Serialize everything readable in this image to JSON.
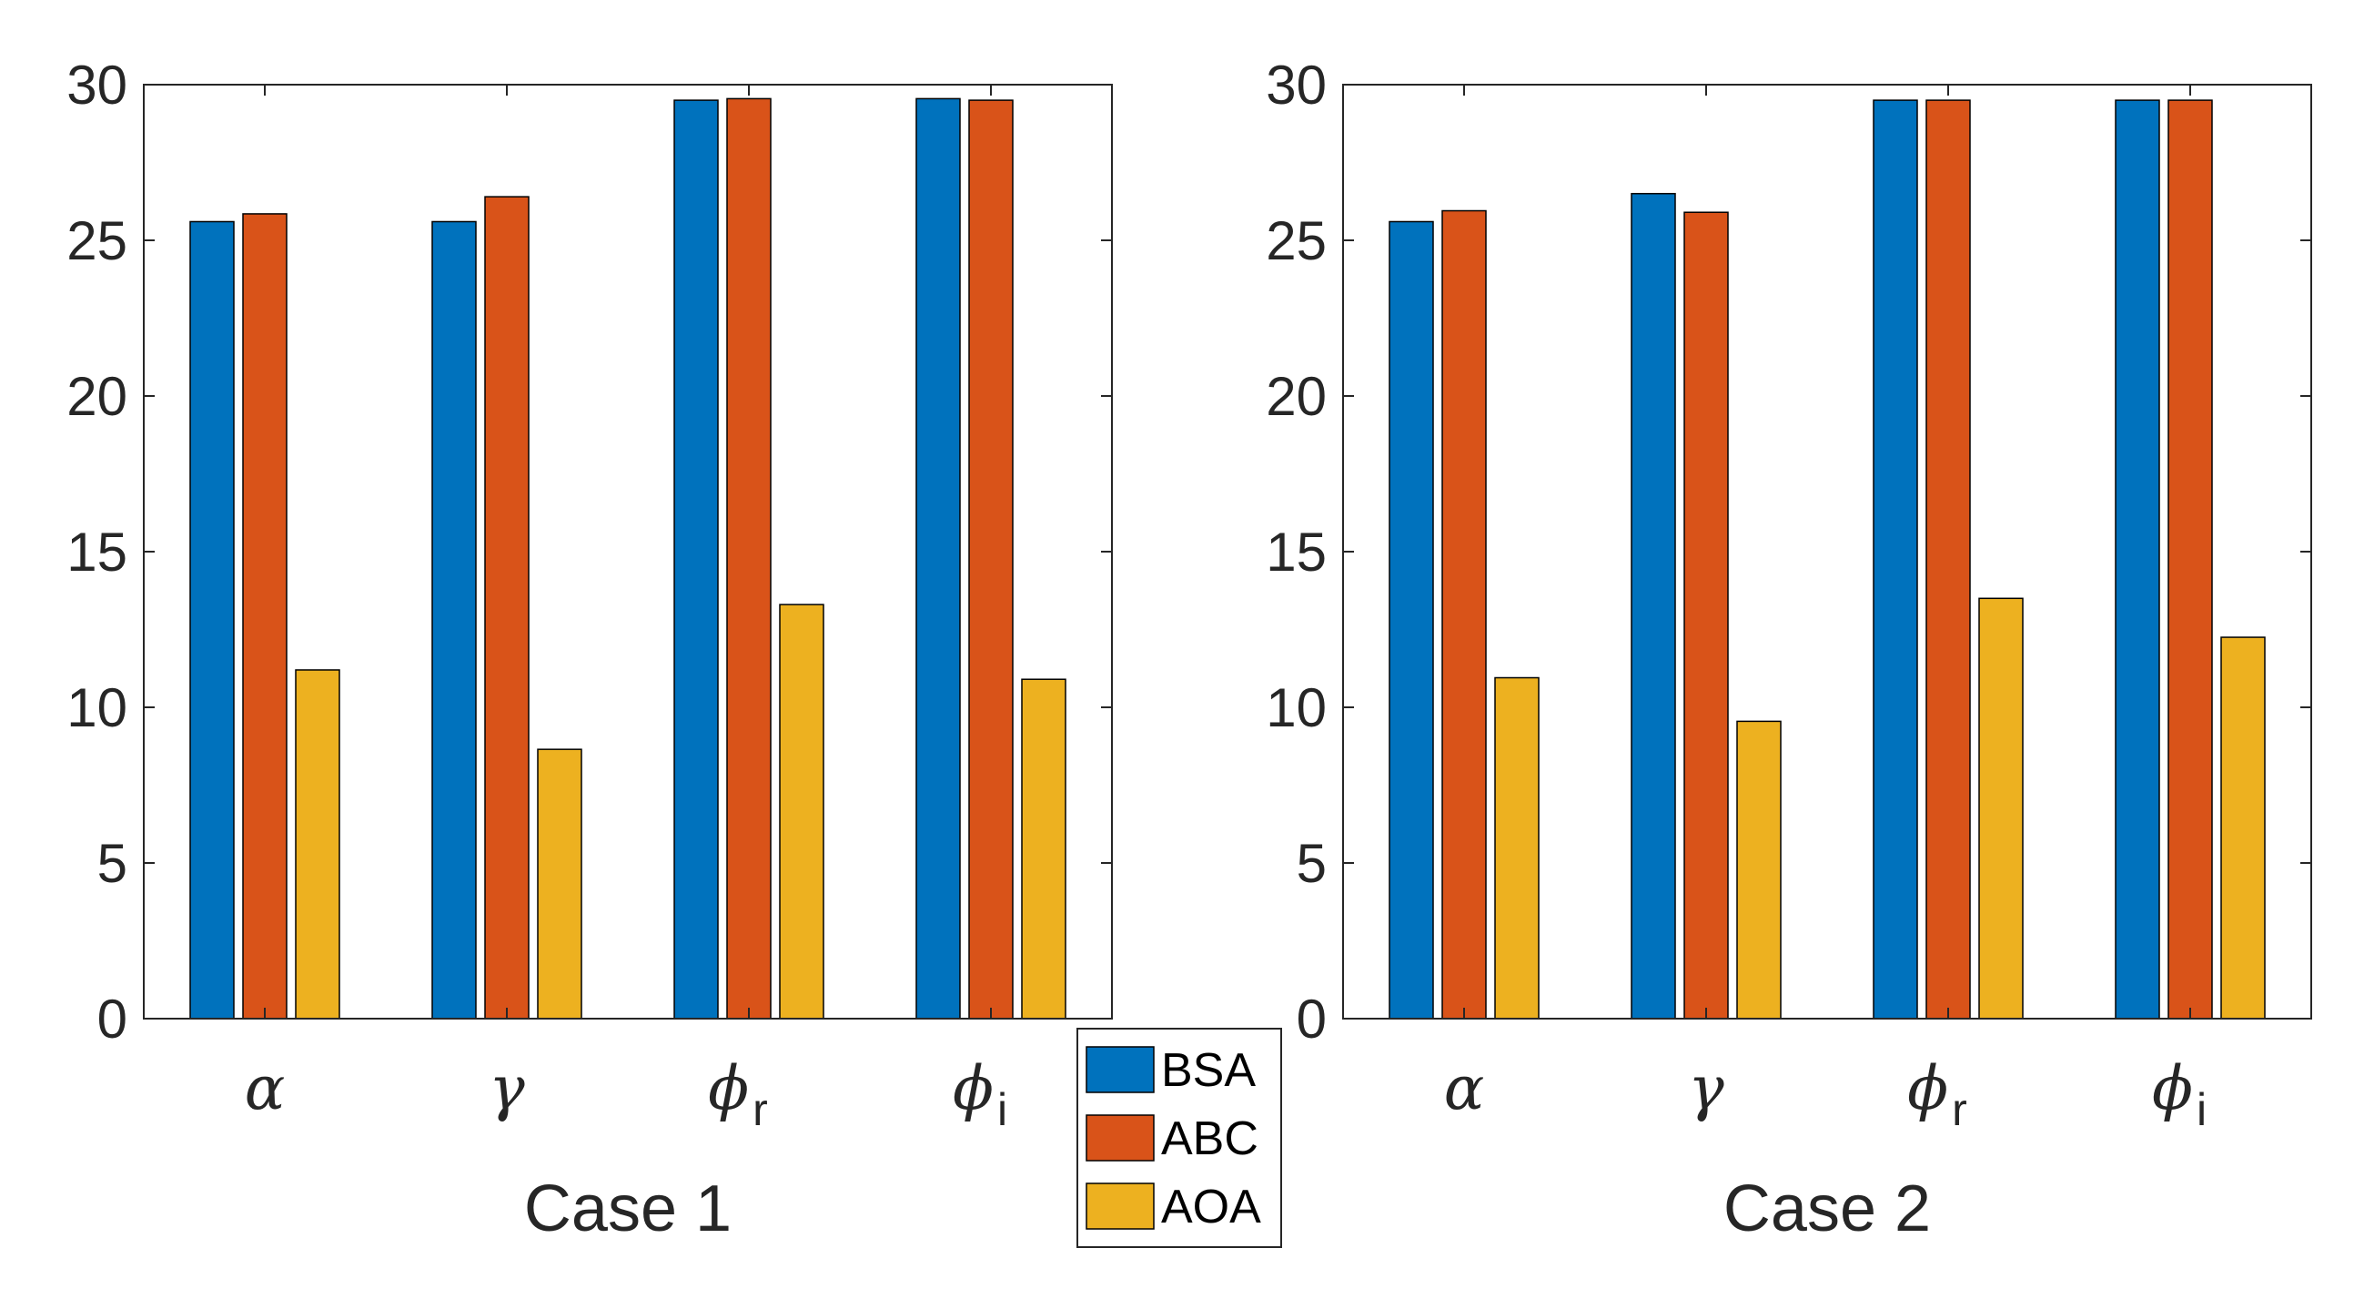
{
  "chart_data": [
    {
      "type": "bar",
      "xlabel": "Case 1",
      "ylabel": "",
      "title": "",
      "ylim": [
        0,
        30
      ],
      "yticks": [
        0,
        5,
        10,
        15,
        20,
        25,
        30
      ],
      "categories": [
        {
          "symbol": "α",
          "sub": ""
        },
        {
          "symbol": "γ",
          "sub": ""
        },
        {
          "symbol": "ϕ",
          "sub": "r"
        },
        {
          "symbol": "ϕ",
          "sub": "i"
        }
      ],
      "series": [
        {
          "name": "BSA",
          "color": "#0072BD",
          "values": [
            25.6,
            25.6,
            29.5,
            29.55
          ]
        },
        {
          "name": "ABC",
          "color": "#D95319",
          "values": [
            25.85,
            26.4,
            29.55,
            29.5
          ]
        },
        {
          "name": "AOA",
          "color": "#EDB120",
          "values": [
            11.2,
            8.65,
            13.3,
            10.9
          ]
        }
      ]
    },
    {
      "type": "bar",
      "xlabel": "Case 2",
      "ylabel": "",
      "title": "",
      "ylim": [
        0,
        30
      ],
      "yticks": [
        0,
        5,
        10,
        15,
        20,
        25,
        30
      ],
      "categories": [
        {
          "symbol": "α",
          "sub": ""
        },
        {
          "symbol": "γ",
          "sub": ""
        },
        {
          "symbol": "ϕ",
          "sub": "r"
        },
        {
          "symbol": "ϕ",
          "sub": "i"
        }
      ],
      "series": [
        {
          "name": "BSA",
          "color": "#0072BD",
          "values": [
            25.6,
            26.5,
            29.5,
            29.5
          ]
        },
        {
          "name": "ABC",
          "color": "#D95319",
          "values": [
            25.95,
            25.9,
            29.5,
            29.5
          ]
        },
        {
          "name": "AOA",
          "color": "#EDB120",
          "values": [
            10.95,
            9.55,
            13.5,
            12.25
          ]
        }
      ]
    }
  ],
  "legend": {
    "placement": "bottom-center",
    "items": [
      "BSA",
      "ABC",
      "AOA"
    ]
  }
}
